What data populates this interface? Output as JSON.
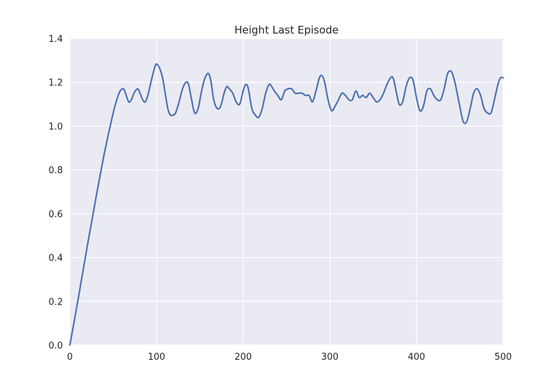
{
  "chart_data": {
    "type": "line",
    "title": "Height Last Episode",
    "xlabel": "",
    "ylabel": "",
    "xlim": [
      0,
      500
    ],
    "ylim": [
      0,
      1.4
    ],
    "xticks": [
      0,
      100,
      200,
      300,
      400,
      500
    ],
    "xtick_labels": [
      "0",
      "100",
      "200",
      "300",
      "400",
      "500"
    ],
    "yticks": [
      0.0,
      0.2,
      0.4,
      0.6,
      0.8,
      1.0,
      1.2,
      1.4
    ],
    "ytick_labels": [
      "0.0",
      "0.2",
      "0.4",
      "0.6",
      "0.8",
      "1.0",
      "1.2",
      "1.4"
    ],
    "grid": true,
    "legend": null,
    "background_color": "#eaeaf2",
    "series": [
      {
        "color": "#4c72b0",
        "x": [
          0,
          10,
          20,
          30,
          40,
          50,
          55,
          58,
          62,
          65,
          68,
          71,
          74,
          78,
          81,
          84,
          87,
          90,
          93,
          96,
          99,
          101,
          104,
          107,
          110,
          113,
          116,
          119,
          122,
          126,
          130,
          134,
          137,
          140,
          144,
          148,
          152,
          156,
          160,
          163,
          166,
          170,
          174,
          178,
          181,
          184,
          188,
          192,
          196,
          200,
          203,
          206,
          210,
          214,
          218,
          222,
          226,
          230,
          233,
          236,
          240,
          244,
          248,
          252,
          256,
          260,
          264,
          268,
          272,
          276,
          280,
          284,
          288,
          291,
          294,
          298,
          302,
          306,
          310,
          314,
          318,
          322,
          326,
          330,
          334,
          338,
          342,
          346,
          350,
          354,
          358,
          362,
          366,
          370,
          373,
          376,
          380,
          384,
          388,
          392,
          396,
          400,
          404,
          408,
          412,
          416,
          420,
          424,
          428,
          432,
          436,
          440,
          443,
          446,
          450,
          454,
          458,
          462,
          466,
          470,
          474,
          478,
          482,
          486,
          490,
          494,
          497,
          500
        ],
        "y": [
          0.0,
          0.22,
          0.45,
          0.67,
          0.88,
          1.06,
          1.13,
          1.16,
          1.17,
          1.14,
          1.11,
          1.12,
          1.15,
          1.17,
          1.15,
          1.12,
          1.11,
          1.14,
          1.19,
          1.24,
          1.28,
          1.28,
          1.26,
          1.22,
          1.15,
          1.08,
          1.05,
          1.05,
          1.06,
          1.11,
          1.17,
          1.2,
          1.19,
          1.13,
          1.06,
          1.08,
          1.16,
          1.22,
          1.24,
          1.2,
          1.12,
          1.08,
          1.09,
          1.15,
          1.18,
          1.17,
          1.15,
          1.11,
          1.1,
          1.16,
          1.19,
          1.17,
          1.08,
          1.05,
          1.04,
          1.08,
          1.15,
          1.19,
          1.18,
          1.16,
          1.14,
          1.12,
          1.16,
          1.17,
          1.17,
          1.15,
          1.15,
          1.15,
          1.14,
          1.14,
          1.11,
          1.16,
          1.22,
          1.23,
          1.2,
          1.12,
          1.07,
          1.09,
          1.12,
          1.15,
          1.14,
          1.12,
          1.12,
          1.16,
          1.13,
          1.14,
          1.13,
          1.15,
          1.13,
          1.11,
          1.12,
          1.15,
          1.19,
          1.22,
          1.22,
          1.17,
          1.1,
          1.11,
          1.18,
          1.22,
          1.21,
          1.13,
          1.07,
          1.09,
          1.16,
          1.17,
          1.14,
          1.12,
          1.12,
          1.17,
          1.24,
          1.25,
          1.22,
          1.17,
          1.09,
          1.02,
          1.02,
          1.08,
          1.15,
          1.17,
          1.14,
          1.08,
          1.06,
          1.06,
          1.12,
          1.19,
          1.22,
          1.22
        ]
      }
    ]
  }
}
